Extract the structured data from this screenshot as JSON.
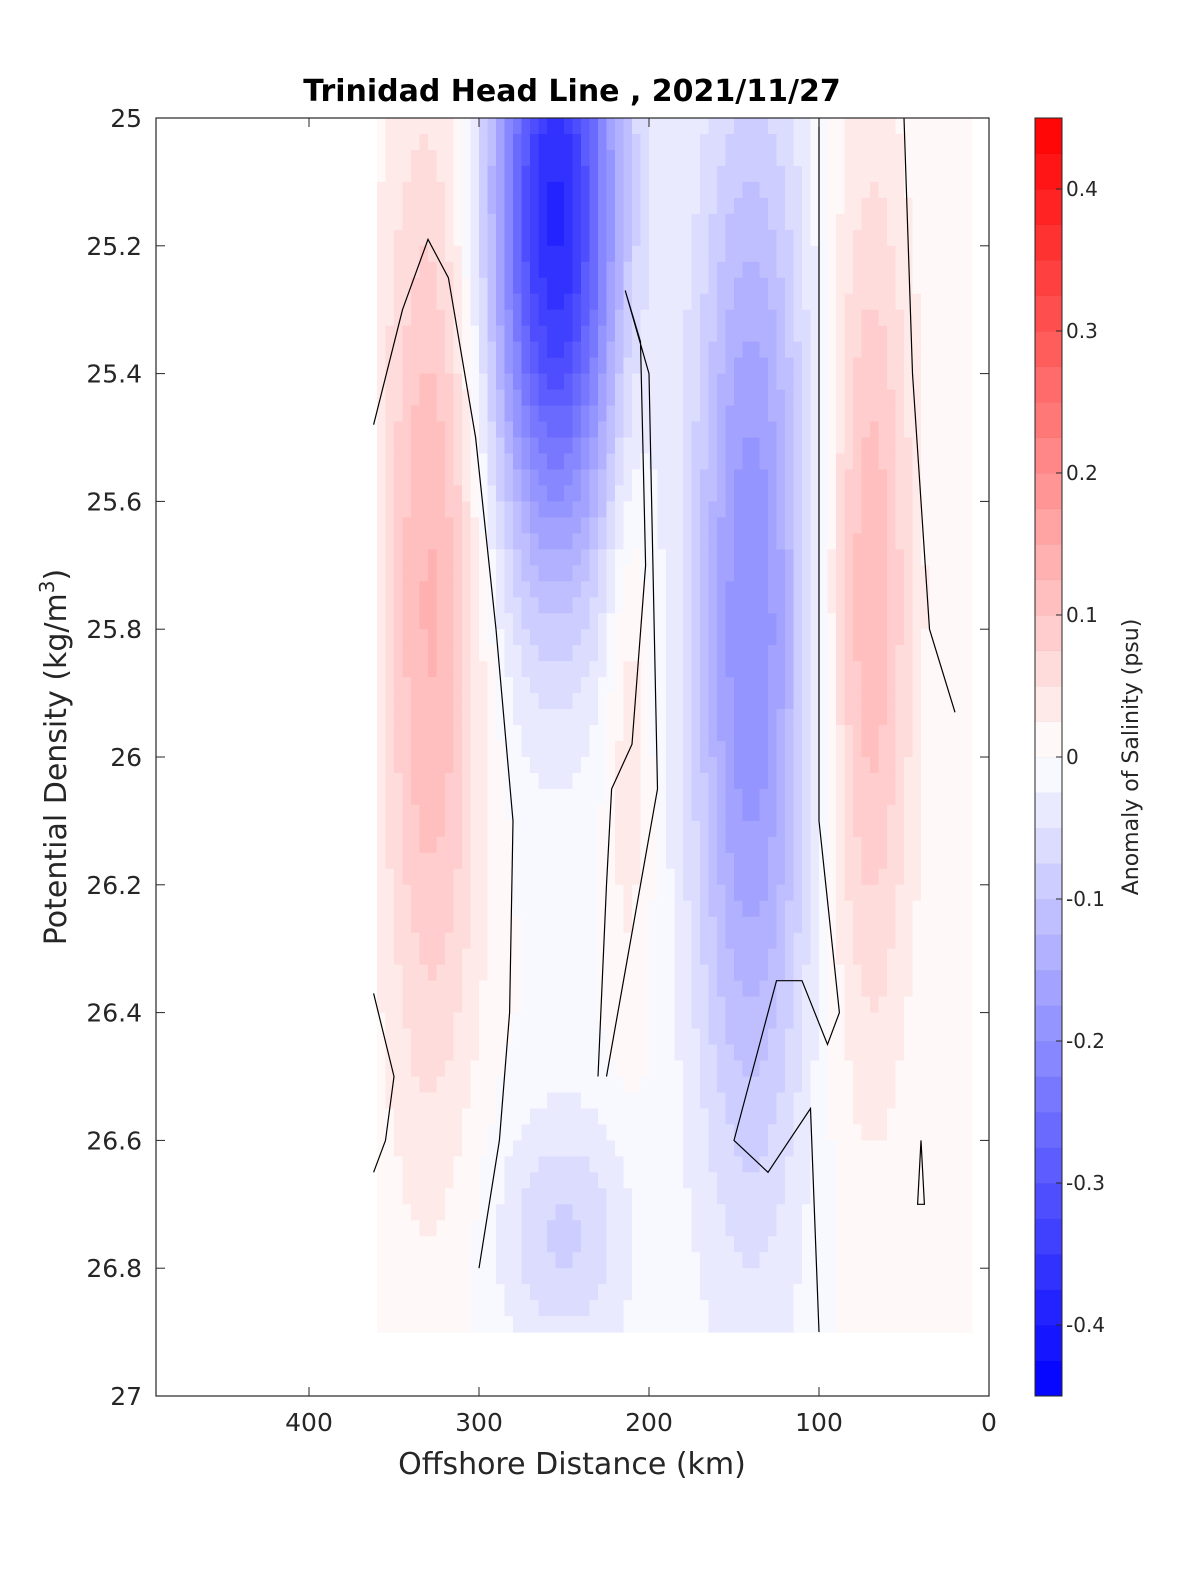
{
  "chart_data": {
    "type": "heatmap",
    "subtype": "filled-contour",
    "title": "Trinidad Head Line , 2021/11/27",
    "xlabel": "Offshore Distance (km)",
    "ylabel_main": "Potential Density (kg/m",
    "ylabel_sup": "3",
    "ylabel_close": ")",
    "xlim": [
      490,
      0
    ],
    "ylim": [
      25,
      27
    ],
    "x_ticks": [
      400,
      300,
      200,
      100,
      0
    ],
    "x_tick_labels": [
      "400",
      "300",
      "200",
      "100",
      "0"
    ],
    "y_ticks": [
      25,
      25.2,
      25.4,
      25.6,
      25.8,
      26,
      26.2,
      26.4,
      26.6,
      26.8,
      27
    ],
    "y_tick_labels": [
      "25",
      "25.2",
      "25.4",
      "25.6",
      "25.8",
      "26",
      "26.2",
      "26.4",
      "26.6",
      "26.8",
      "27"
    ],
    "colorbar": {
      "label": "Anomaly of Salinity (psu)",
      "range": [
        -0.45,
        0.45
      ],
      "step": 0.025,
      "ticks": [
        0.4,
        0.3,
        0.2,
        0.1,
        0,
        -0.1,
        -0.2,
        -0.3,
        -0.4
      ],
      "tick_labels": [
        "0.4",
        "0.3",
        "0.2",
        "0.1",
        "0",
        "-0.1",
        "-0.2",
        "-0.3",
        "-0.4"
      ],
      "color_high": "#ff0000",
      "color_mid": "#ffffff",
      "color_low": "#0000ff"
    },
    "data_extent": {
      "x_range": [
        360,
        10
      ],
      "y_range": [
        25,
        26.9
      ]
    },
    "features": [
      {
        "name": "offshore positive core",
        "x": 328,
        "y": 25.75,
        "value": 0.13,
        "x_halfwidth": 30,
        "y_halfwidth": 0.8
      },
      {
        "name": "upper negative core",
        "x": 255,
        "y": 25.15,
        "value": -0.38,
        "x_halfwidth": 38,
        "y_halfwidth": 0.55
      },
      {
        "name": "mid negative band",
        "x": 140,
        "y": 25.8,
        "value": -0.2,
        "x_halfwidth": 35,
        "y_halfwidth": 0.85
      },
      {
        "name": "narrow positive band",
        "x": 212,
        "y": 25.9,
        "value": 0.05,
        "x_halfwidth": 14,
        "y_halfwidth": 0.5
      },
      {
        "name": "nearshore positive core",
        "x": 70,
        "y": 25.75,
        "value": 0.12,
        "x_halfwidth": 26,
        "y_halfwidth": 0.7
      },
      {
        "name": "deep negative patch",
        "x": 250,
        "y": 26.75,
        "value": -0.08,
        "x_halfwidth": 40,
        "y_halfwidth": 0.2
      }
    ],
    "zero_contours": [
      [
        [
          362,
          25.48
        ],
        [
          345,
          25.3
        ],
        [
          330,
          25.19
        ],
        [
          318,
          25.25
        ],
        [
          302,
          25.5
        ],
        [
          290,
          25.8
        ],
        [
          280,
          26.1
        ],
        [
          282,
          26.4
        ],
        [
          288,
          26.6
        ],
        [
          300,
          26.8
        ]
      ],
      [
        [
          362,
          26.37
        ],
        [
          350,
          26.5
        ],
        [
          355,
          26.6
        ],
        [
          362,
          26.65
        ]
      ],
      [
        [
          230,
          26.5
        ],
        [
          225,
          26.2
        ],
        [
          222,
          26.05
        ],
        [
          210,
          25.98
        ],
        [
          202,
          25.7
        ],
        [
          205,
          25.35
        ],
        [
          214,
          25.27
        ],
        [
          200,
          25.4
        ],
        [
          195,
          26.05
        ],
        [
          225,
          26.5
        ]
      ],
      [
        [
          100,
          25.0
        ],
        [
          100,
          26.1
        ],
        [
          88,
          26.4
        ],
        [
          95,
          26.45
        ],
        [
          110,
          26.35
        ],
        [
          125,
          26.35
        ],
        [
          140,
          26.5
        ],
        [
          150,
          26.6
        ],
        [
          130,
          26.65
        ],
        [
          105,
          26.55
        ],
        [
          100,
          26.9
        ]
      ],
      [
        [
          50,
          25.0
        ],
        [
          45,
          25.4
        ],
        [
          35,
          25.8
        ],
        [
          20,
          25.93
        ]
      ],
      [
        [
          40,
          26.6
        ],
        [
          42,
          26.7
        ],
        [
          38,
          26.7
        ],
        [
          40,
          26.6
        ]
      ]
    ]
  }
}
